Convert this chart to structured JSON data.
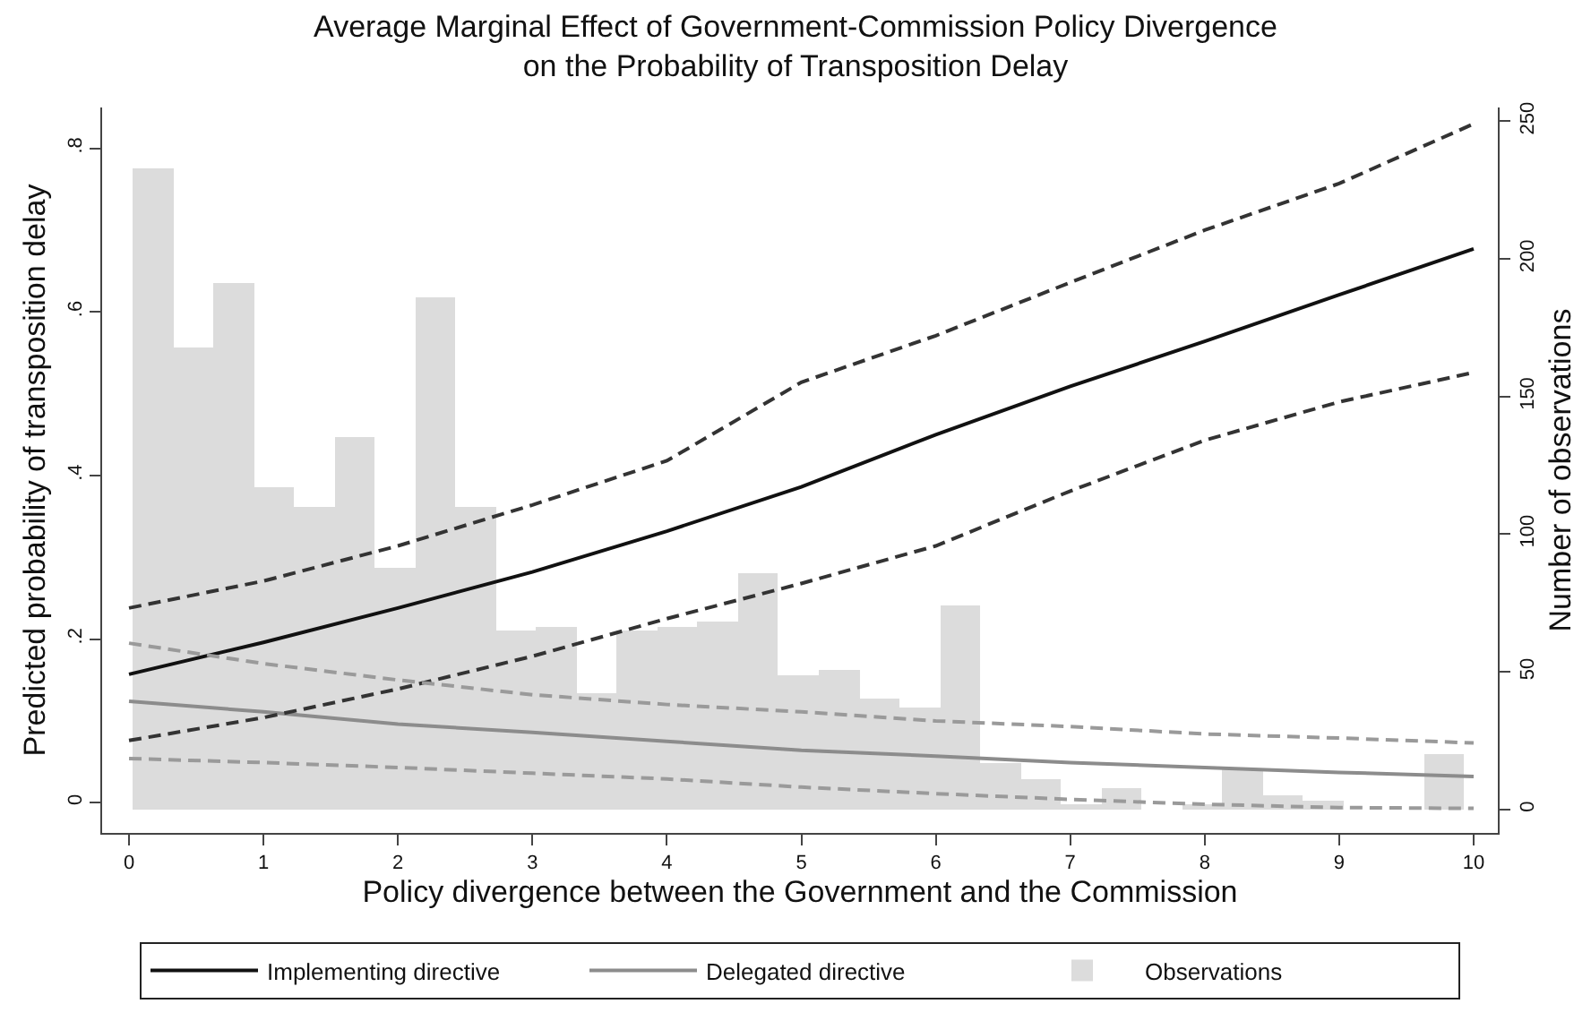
{
  "chart_data": {
    "type": "line",
    "title": "Average Marginal Effect of Government-Commission Policy Divergence\non the Probability of Transposition Delay",
    "xlabel": "Policy divergence between the Government and the Commission",
    "ylabel": "Predicted probability of transposition delay",
    "y2label": "Number of observations",
    "x": [
      0,
      1,
      2,
      3,
      4,
      5,
      6,
      7,
      8,
      9,
      10
    ],
    "series": [
      {
        "name": "Implementing directive",
        "color": "#111111",
        "line_style": "solid",
        "values": [
          0.157,
          0.196,
          0.238,
          0.282,
          0.332,
          0.386,
          0.45,
          0.509,
          0.564,
          0.621,
          0.677
        ]
      },
      {
        "name": "Delegated directive",
        "color": "#8c8c8c",
        "line_style": "solid",
        "values": [
          0.124,
          0.111,
          0.096,
          0.086,
          0.075,
          0.064,
          0.057,
          0.049,
          0.043,
          0.037,
          0.032
        ]
      },
      {
        "type": "histogram",
        "name": "Observations",
        "color": "#dcdcdc",
        "axis": "y2",
        "bins": [
          0.03,
          0.33,
          0.63,
          0.93,
          1.23,
          1.53,
          1.83,
          2.13,
          2.43,
          2.73,
          3.03,
          3.33,
          3.63,
          3.93,
          4.23,
          4.53,
          4.83,
          5.13,
          5.43,
          5.73,
          6.03,
          6.33,
          6.63,
          6.93,
          7.23,
          7.53,
          7.83,
          8.13,
          8.43,
          8.73,
          9.03,
          9.33,
          9.63,
          9.93
        ],
        "values": [
          233,
          168,
          191,
          117,
          110,
          135,
          88,
          186,
          110,
          65,
          66,
          42,
          65,
          66,
          68,
          86,
          49,
          51,
          40,
          37,
          74,
          17,
          11,
          2,
          8,
          0,
          2,
          15,
          5,
          3,
          0,
          0,
          20
        ]
      },
      {
        "color": "#333333",
        "line_style": "dashed",
        "values": [
          0.238,
          0.271,
          0.314,
          0.364,
          0.418,
          0.514,
          0.571,
          0.636,
          0.7,
          0.757,
          0.83
        ]
      },
      {
        "color": "#333333",
        "line_style": "dashed",
        "values": [
          0.076,
          0.104,
          0.139,
          0.179,
          0.225,
          0.268,
          0.314,
          0.381,
          0.443,
          0.49,
          0.526
        ]
      },
      {
        "color": "#9a9a9a",
        "line_style": "dashed",
        "values": [
          0.195,
          0.17,
          0.15,
          0.132,
          0.12,
          0.111,
          0.1,
          0.093,
          0.084,
          0.079,
          0.073
        ]
      },
      {
        "color": "#9a9a9a",
        "line_style": "dashed",
        "values": [
          0.054,
          0.049,
          0.043,
          0.036,
          0.029,
          0.019,
          0.011,
          0.004,
          -0.002,
          -0.006,
          -0.007
        ]
      }
    ],
    "xlim": [
      -0.2,
      10.18
    ],
    "xticks": [
      0,
      1,
      2,
      3,
      4,
      5,
      6,
      7,
      8,
      9,
      10
    ],
    "ylim": [
      -0.037,
      0.85
    ],
    "yticks": [
      0,
      {
        "value": 0.2,
        "label": ".2"
      },
      {
        "value": 0.4,
        "label": ".4"
      },
      {
        "value": 0.6,
        "label": ".6"
      },
      {
        "value": 0.8,
        "label": ".8"
      }
    ],
    "y2lim": [
      -8.5,
      255
    ],
    "y2ticks": [
      0,
      50,
      100,
      150,
      200,
      250
    ],
    "grid": false,
    "legend": "bottom"
  }
}
